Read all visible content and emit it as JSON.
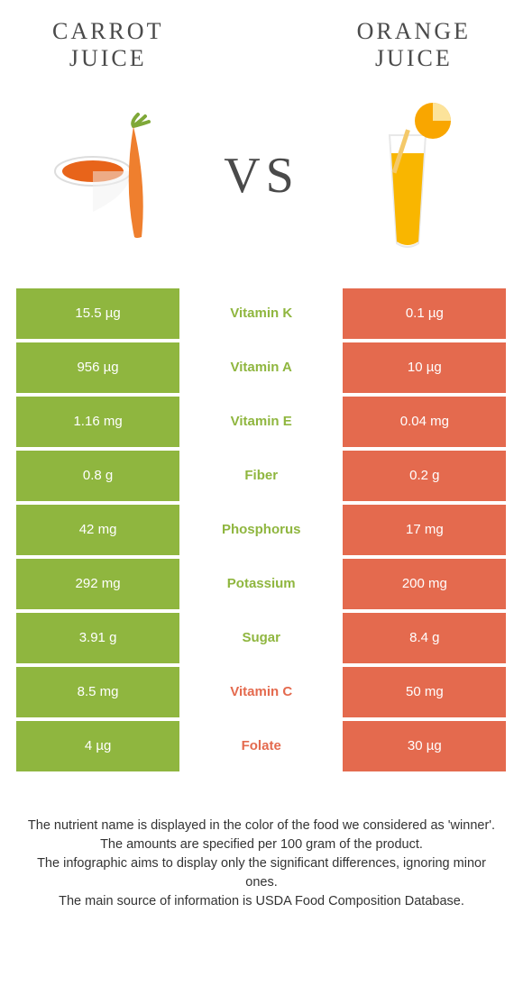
{
  "header": {
    "left_title_l1": "Carrot",
    "left_title_l2": "juice",
    "right_title_l1": "Orange",
    "right_title_l2": "juice",
    "vs": "VS"
  },
  "colors": {
    "carrot": "#8fb63f",
    "orange": "#e46a4e",
    "mid_bg": "#ffffff",
    "text_dark": "#4a4a4a"
  },
  "rows": [
    {
      "nutrient": "Vitamin K",
      "left": "15.5 µg",
      "right": "0.1 µg",
      "winner": "left"
    },
    {
      "nutrient": "Vitamin A",
      "left": "956 µg",
      "right": "10 µg",
      "winner": "left"
    },
    {
      "nutrient": "Vitamin E",
      "left": "1.16 mg",
      "right": "0.04 mg",
      "winner": "left"
    },
    {
      "nutrient": "Fiber",
      "left": "0.8 g",
      "right": "0.2 g",
      "winner": "left"
    },
    {
      "nutrient": "Phosphorus",
      "left": "42 mg",
      "right": "17 mg",
      "winner": "left"
    },
    {
      "nutrient": "Potassium",
      "left": "292 mg",
      "right": "200 mg",
      "winner": "left"
    },
    {
      "nutrient": "Sugar",
      "left": "3.91 g",
      "right": "8.4 g",
      "winner": "left"
    },
    {
      "nutrient": "Vitamin C",
      "left": "8.5 mg",
      "right": "50 mg",
      "winner": "right"
    },
    {
      "nutrient": "Folate",
      "left": "4 µg",
      "right": "30 µg",
      "winner": "right"
    }
  ],
  "footnotes": [
    "The nutrient name is displayed in the color of the food we considered as 'winner'.",
    "The amounts are specified per 100 gram of the product.",
    "The infographic aims to display only the significant differences, ignoring minor ones.",
    "The main source of information is USDA Food Composition Database."
  ]
}
